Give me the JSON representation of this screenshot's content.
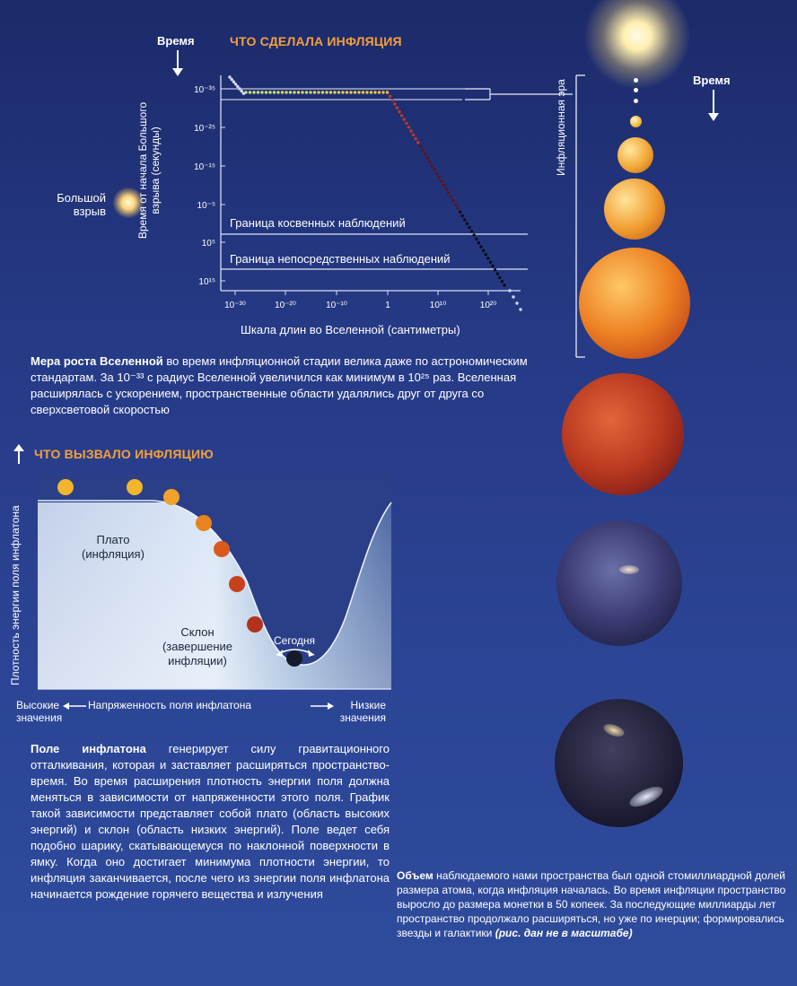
{
  "top_chart": {
    "title": "ЧТО СДЕЛАЛА ИНФЛЯЦИЯ",
    "time_label": "Время",
    "ylabel": "Время от начала Большого взрыва (секунды)",
    "ylabel_line1": "Время от начала Большого",
    "ylabel_line2": "взрыва (секунды)",
    "xlabel": "Шкала длин во Вселенной (сантиметры)",
    "y_ticks": [
      "10⁻³⁵",
      "10⁻²⁵",
      "10⁻¹⁵",
      "10⁻⁵",
      "10⁵",
      "10¹⁵"
    ],
    "x_ticks": [
      "10⁻³⁰",
      "10⁻²⁰",
      "10⁻¹⁰",
      "1",
      "10¹⁰",
      "10²⁰"
    ],
    "line_indirect": "Граница косвенных наблюдений",
    "line_direct": "Граница непосредственных наблюдений",
    "big_bang_label_1": "Большой",
    "big_bang_label_2": "взрыв"
  },
  "chart_data": {
    "type": "scatter",
    "title": "ЧТО СДЕЛАЛА ИНФЛЯЦИЯ",
    "xlabel": "Шкала длин во Вселенной (сантиметры)",
    "ylabel": "Время от начала Большого взрыва (секунды)",
    "x_scale": "log",
    "y_scale": "log",
    "x_tick_labels": [
      "10⁻³⁰",
      "10⁻²⁰",
      "10⁻¹⁰",
      "1",
      "10¹⁰",
      "10²⁰"
    ],
    "y_tick_labels": [
      "10⁻³⁵",
      "10⁻²⁵",
      "10⁻¹⁵",
      "10⁻⁵",
      "10⁵",
      "10¹⁵"
    ],
    "y_direction": "time increases downward",
    "annotations": [
      "Граница косвенных наблюдений",
      "Граница непосредственных наблюдений"
    ]
  },
  "right_column": {
    "era_label": "Инфляционная эра",
    "time_label": "Время"
  },
  "caption_growth": {
    "bold": "Мера роста Вселенной",
    "text": " во время инфляционной стадии велика даже по астрономическим стандартам. За 10⁻³³ с радиус Вселенной увеличился как минимум в 10²⁵ раз. Вселенная расширялась с ускорением, пространственные области удалялись друг от друга со сверхсветовой скоростью"
  },
  "potential_chart": {
    "title": "ЧТО ВЫЗВАЛО ИНФЛЯЦИЮ",
    "ylabel": "Плотность энергии поля инфлатона",
    "plateau_1": "Плато",
    "plateau_2": "(инфляция)",
    "slope_1": "Склон",
    "slope_2": "(завершение",
    "slope_3": "инфляции)",
    "today": "Сегодня",
    "x_center": "Напряженность поля инфлатона",
    "x_left_1": "Высокие",
    "x_left_2": "значения",
    "x_right_1": "Низкие",
    "x_right_2": "значения"
  },
  "caption_field": {
    "bold": "Поле инфлатона",
    "text": " генерирует силу гравитационного отталкивания, которая и заставляет расширяться пространство-время. Во время расширения плотность энергии поля должна меняться в зависимости от напряженности этого поля. График такой зависимости представляет собой плато (область высоких энергий) и склон (область низких энергий). Поле ведет себя подобно шарику, скатывающемуся по наклонной поверхности в ямку. Когда оно достигает минимума плотности энергии, то инфляция заканчивается, после чего из энергии поля инфлатона начинается рождение горячего вещества и излучения"
  },
  "caption_volume": {
    "bold": "Объем",
    "text": " наблюдаемого нами пространства был одной стомиллиардной долей размера атома, когда инфляция началась. Во время инфляции пространство выросло до размера монетки в 50 копеек. За последующие миллиарды лет пространство продолжало расширяться, но уже по инерции; формировались звезды и галактики ",
    "italic": "(рис. дан не в масштабе)"
  },
  "colors": {
    "accent_orange": "#f4a03a",
    "background_top": "#1c2a6a",
    "background_bottom": "#2f4b9c"
  }
}
